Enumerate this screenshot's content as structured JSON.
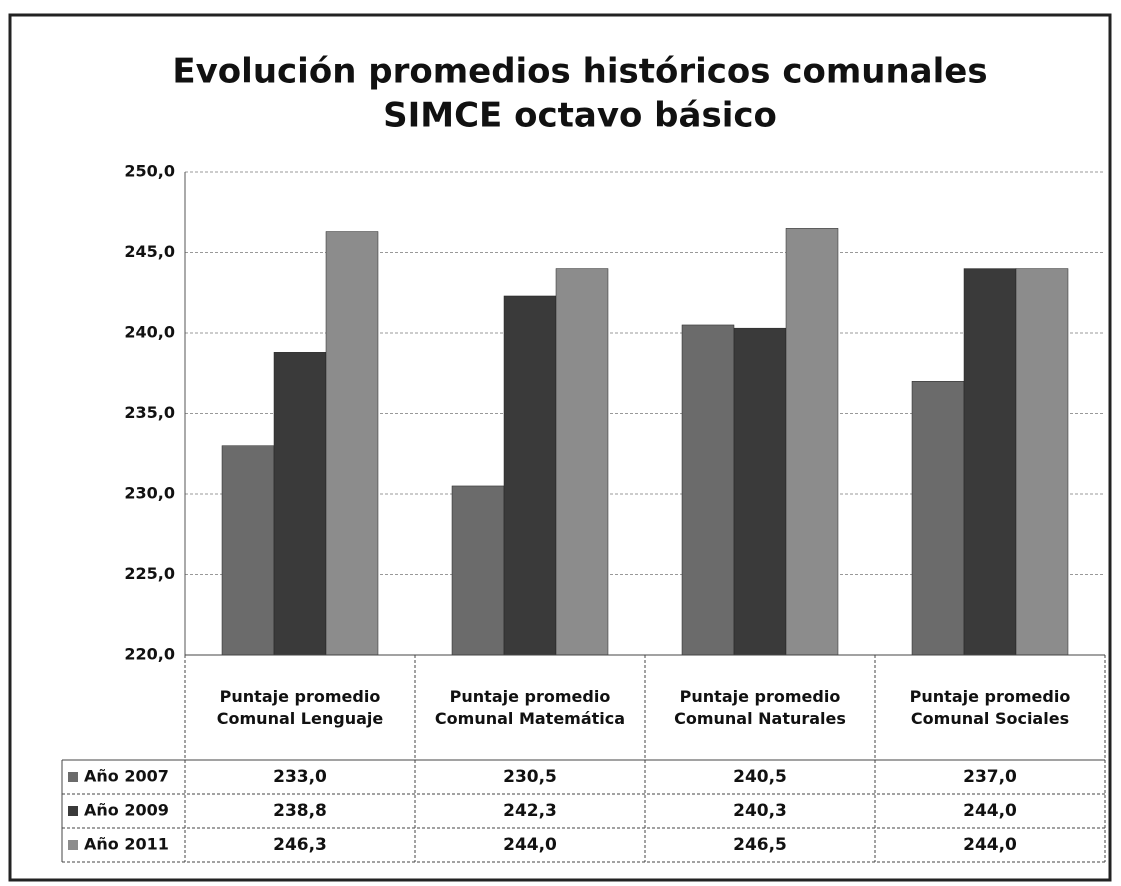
{
  "chart_data": {
    "type": "bar",
    "title_lines": [
      "Evolución promedios históricos comunales",
      "SIMCE octavo básico"
    ],
    "categories": [
      "Puntaje promedio Comunal Lenguaje",
      "Puntaje promedio Comunal Matemática",
      "Puntaje promedio Comunal  Naturales",
      "Puntaje promedio Comunal Sociales"
    ],
    "series": [
      {
        "name": "Año 2007",
        "color": "#6b6b6b",
        "values": [
          233.0,
          230.5,
          240.5,
          237.0
        ],
        "value_labels": [
          "233,0",
          "230,5",
          "240,5",
          "237,0"
        ]
      },
      {
        "name": "Año 2009",
        "color": "#3a3a3a",
        "values": [
          238.8,
          242.3,
          240.3,
          244.0
        ],
        "value_labels": [
          "238,8",
          "242,3",
          "240,3",
          "244,0"
        ]
      },
      {
        "name": "Año 2011",
        "color": "#8c8c8c",
        "values": [
          246.3,
          244.0,
          246.5,
          244.0
        ],
        "value_labels": [
          "246,3",
          "244,0",
          "246,5",
          "244,0"
        ]
      }
    ],
    "ylim": [
      220,
      250
    ],
    "yticks": [
      {
        "value": 220,
        "label": "220,0"
      },
      {
        "value": 225,
        "label": "225,0"
      },
      {
        "value": 230,
        "label": "230,0"
      },
      {
        "value": 235,
        "label": "235,0"
      },
      {
        "value": 240,
        "label": "240,0"
      },
      {
        "value": 245,
        "label": "245,0"
      },
      {
        "value": 250,
        "label": "250,0"
      }
    ],
    "grid": true
  }
}
